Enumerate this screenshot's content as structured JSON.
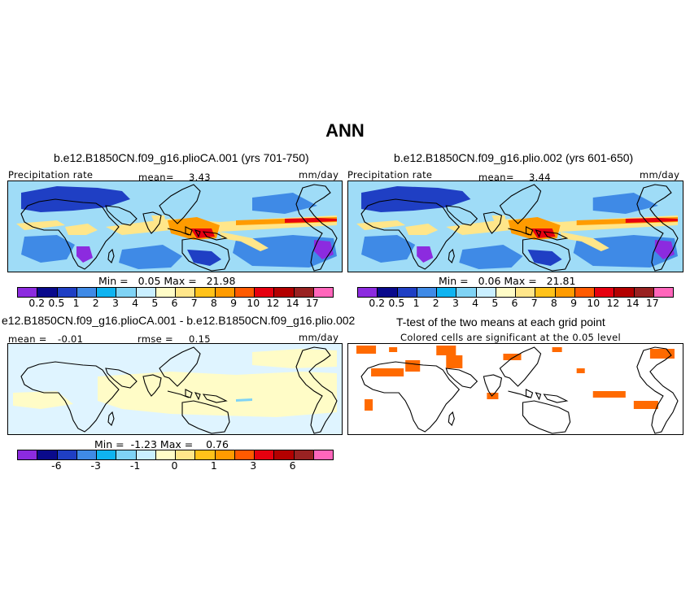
{
  "title": "ANN",
  "panels": {
    "p1": {
      "title": "b.e12.B1850CN.f09_g16.plioCA.001 (yrs 701-750)",
      "variable": "Precipitation rate",
      "mean_label": "mean=",
      "mean_value": "3.43",
      "units": "mm/day",
      "min_label": "Min =",
      "min_value": "0.05",
      "max_label": "Max =",
      "max_value": "21.98"
    },
    "p2": {
      "title": "b.e12.B1850CN.f09_g16.plio.002 (yrs 601-650)",
      "variable": "Precipitation rate",
      "mean_label": "mean=",
      "mean_value": "3.44",
      "units": "mm/day",
      "min_label": "Min =",
      "min_value": "0.06",
      "max_label": "Max =",
      "max_value": "21.81"
    },
    "p3": {
      "title": "e12.B1850CN.f09_g16.plioCA.001 - b.e12.B1850CN.f09_g16.plio.002",
      "mean_label": "mean =",
      "mean_value": "-0.01",
      "rmse_label": "rmse =",
      "rmse_value": "0.15",
      "units": "mm/day",
      "min_label": "Min =",
      "min_value": "-1.23",
      "max_label": "Max =",
      "max_value": "0.76"
    },
    "p4": {
      "title": "T-test of the two means at each grid point",
      "subtitle": "Colored cells are significant at the 0.05 level",
      "sig_color": "#ff6a00"
    }
  },
  "colorbars": {
    "precip": {
      "colors": [
        "#8c2bdf",
        "#0a0a8c",
        "#1f3fc4",
        "#3f8ae6",
        "#0fb3f0",
        "#7fd3f5",
        "#c9efff",
        "#fffcc7",
        "#ffe68a",
        "#ffc21a",
        "#ff9b00",
        "#ff5a00",
        "#e6000f",
        "#b30000",
        "#992222",
        "#ff66bb"
      ],
      "labels": [
        "0.2",
        "0.5",
        "1",
        "2",
        "3",
        "4",
        "5",
        "6",
        "7",
        "8",
        "9",
        "10",
        "12",
        "14",
        "17"
      ]
    },
    "diff": {
      "colors": [
        "#8c2bdf",
        "#0a0a8c",
        "#1f3fc4",
        "#3f8ae6",
        "#0fb3f0",
        "#7fd3f5",
        "#c9efff",
        "#fffcc7",
        "#ffe68a",
        "#ffc21a",
        "#ff9b00",
        "#ff5a00",
        "#e6000f",
        "#b30000",
        "#992222",
        "#ff66bb"
      ],
      "labels": [
        "-6",
        "-3",
        "-1",
        "0",
        "1",
        "3",
        "6"
      ]
    }
  },
  "map_colors": {
    "ocean": "#9fdcf7",
    "dry": "#3f8ae6",
    "very_dry": "#1f3fc4",
    "desert": "#8c2bdf",
    "wet": "#ffe68a",
    "wetter": "#ff9b00",
    "wettest": "#e6000f",
    "diff_neg": "#dff4ff",
    "diff_pos": "#fffcc7",
    "coast": "#000000"
  }
}
